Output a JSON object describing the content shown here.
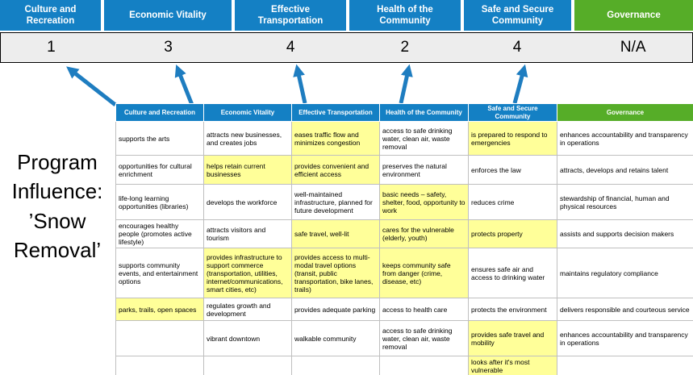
{
  "colors": {
    "header_blue": "#1480c4",
    "header_green": "#56ad28",
    "highlight_yellow": "#ffff99",
    "score_bar_bg": "#ededed",
    "arrow_blue": "#1e7dc0",
    "table_border": "#bfbfbf"
  },
  "scoreboard": {
    "columns": [
      {
        "label": "Culture and Recreation",
        "score": "1",
        "accent": "blue"
      },
      {
        "label": "Economic Vitality",
        "score": "3",
        "accent": "blue"
      },
      {
        "label": "Effective Transportation",
        "score": "4",
        "accent": "blue"
      },
      {
        "label": "Health of the Community",
        "score": "2",
        "accent": "blue"
      },
      {
        "label": "Safe and Secure Community",
        "score": "4",
        "accent": "blue"
      },
      {
        "label": "Governance",
        "score": "N/A",
        "accent": "green"
      }
    ]
  },
  "program_label": {
    "lines": [
      "Program",
      "Influence:",
      "’Snow",
      "Removal’"
    ]
  },
  "matrix": {
    "columns": [
      {
        "label": "Culture and Recreation",
        "accent": "blue"
      },
      {
        "label": "Economic Vitality",
        "accent": "blue"
      },
      {
        "label": "Effective Transportation",
        "accent": "blue"
      },
      {
        "label": "Health of the Community",
        "accent": "blue"
      },
      {
        "label": "Safe and Secure Community",
        "accent": "blue"
      },
      {
        "label": "Governance",
        "accent": "green"
      }
    ],
    "rows": [
      [
        {
          "text": "supports the arts",
          "highlight": false
        },
        {
          "text": "attracts new businesses, and creates jobs",
          "highlight": false
        },
        {
          "text": "eases traffic flow and minimizes congestion",
          "highlight": true
        },
        {
          "text": "access to safe drinking water, clean air, waste removal",
          "highlight": false
        },
        {
          "text": "is prepared to respond to emergencies",
          "highlight": true
        },
        {
          "text": "enhances accountability and transparency in operations",
          "highlight": false
        }
      ],
      [
        {
          "text": "opportunities for cultural enrichment",
          "highlight": false
        },
        {
          "text": "helps retain current businesses",
          "highlight": true
        },
        {
          "text": "provides convenient and efficient access",
          "highlight": true
        },
        {
          "text": "preserves the natural environment",
          "highlight": false
        },
        {
          "text": "enforces the law",
          "highlight": false
        },
        {
          "text": "attracts, develops and retains talent",
          "highlight": false
        }
      ],
      [
        {
          "text": "life-long learning opportunities (libraries)",
          "highlight": false
        },
        {
          "text": "develops the workforce",
          "highlight": false
        },
        {
          "text": "well-maintained infrastructure, planned for future development",
          "highlight": false
        },
        {
          "text": "basic needs – safety, shelter, food, opportunity to work",
          "highlight": true
        },
        {
          "text": "reduces crime",
          "highlight": false
        },
        {
          "text": "stewardship of financial, human and physical resources",
          "highlight": false
        }
      ],
      [
        {
          "text": "encourages healthy people (promotes active lifestyle)",
          "highlight": false
        },
        {
          "text": "attracts visitors and tourism",
          "highlight": false
        },
        {
          "text": "safe travel, well-lit",
          "highlight": true
        },
        {
          "text": "cares for the vulnerable (elderly, youth)",
          "highlight": true
        },
        {
          "text": "protects property",
          "highlight": true
        },
        {
          "text": "assists and supports decision makers",
          "highlight": false
        }
      ],
      [
        {
          "text": "supports community events, and entertainment options",
          "highlight": false
        },
        {
          "text": "provides infrastructure to support commerce (transportation, utilities, internet/communications, smart cities, etc)",
          "highlight": true
        },
        {
          "text": "provides access to multi-modal travel options (transit, public transportation, bike lanes, trails)",
          "highlight": true
        },
        {
          "text": "keeps community safe from danger (crime, disease, etc)",
          "highlight": true
        },
        {
          "text": "ensures safe air and access to drinking water",
          "highlight": false
        },
        {
          "text": "maintains regulatory compliance",
          "highlight": false
        }
      ],
      [
        {
          "text": "parks, trails, open spaces",
          "highlight": true
        },
        {
          "text": "regulates growth and development",
          "highlight": false
        },
        {
          "text": "provides adequate parking",
          "highlight": false
        },
        {
          "text": "access to health care",
          "highlight": false
        },
        {
          "text": "protects the environment",
          "highlight": false
        },
        {
          "text": "delivers responsible and courteous service",
          "highlight": false
        }
      ],
      [
        {
          "text": "",
          "highlight": false
        },
        {
          "text": "vibrant downtown",
          "highlight": false
        },
        {
          "text": "walkable community",
          "highlight": false
        },
        {
          "text": "access to safe drinking water, clean air, waste removal",
          "highlight": false
        },
        {
          "text": "provides safe travel and mobility",
          "highlight": true
        },
        {
          "text": "enhances accountability and transparency in operations",
          "highlight": false
        }
      ],
      [
        {
          "text": "",
          "highlight": false
        },
        {
          "text": "",
          "highlight": false
        },
        {
          "text": "",
          "highlight": false
        },
        {
          "text": "",
          "highlight": false
        },
        {
          "text": "looks after it's most vulnerable",
          "highlight": true
        },
        {
          "text": "",
          "highlight": false
        }
      ]
    ]
  }
}
